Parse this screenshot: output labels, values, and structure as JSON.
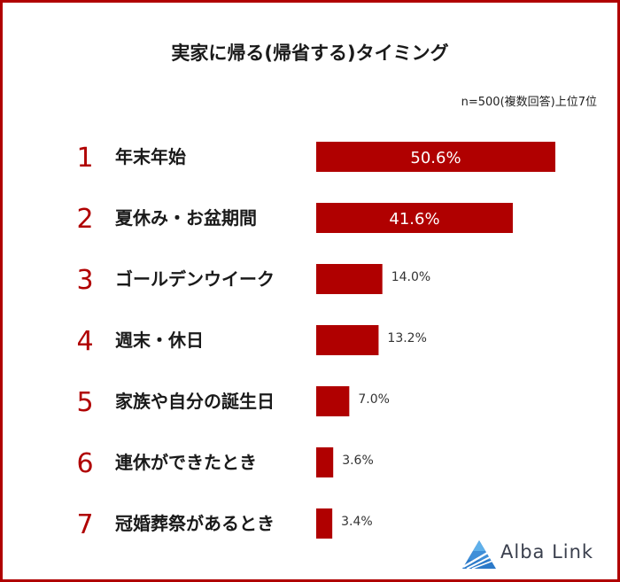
{
  "chart_data": {
    "type": "bar",
    "title": "実家に帰る(帰省する)タイミング",
    "subtitle": "n=500(複数回答)上位7位",
    "ranks": [
      "1",
      "2",
      "3",
      "4",
      "5",
      "6",
      "7"
    ],
    "categories": [
      "年末年始",
      "夏休み・お盆期間",
      "ゴールデンウイーク",
      "週末・休日",
      "家族や自分の誕生日",
      "連休ができたとき",
      "冠婚葬祭があるとき"
    ],
    "values": [
      50.6,
      41.6,
      14.0,
      13.2,
      7.0,
      3.6,
      3.4
    ],
    "value_labels": [
      "50.6%",
      "41.6%",
      "14.0%",
      "13.2%",
      "7.0%",
      "3.6%",
      "3.4%"
    ],
    "bar_color": "#b00000",
    "border_color": "#b00000"
  },
  "brand": {
    "name": "Alba Link"
  }
}
